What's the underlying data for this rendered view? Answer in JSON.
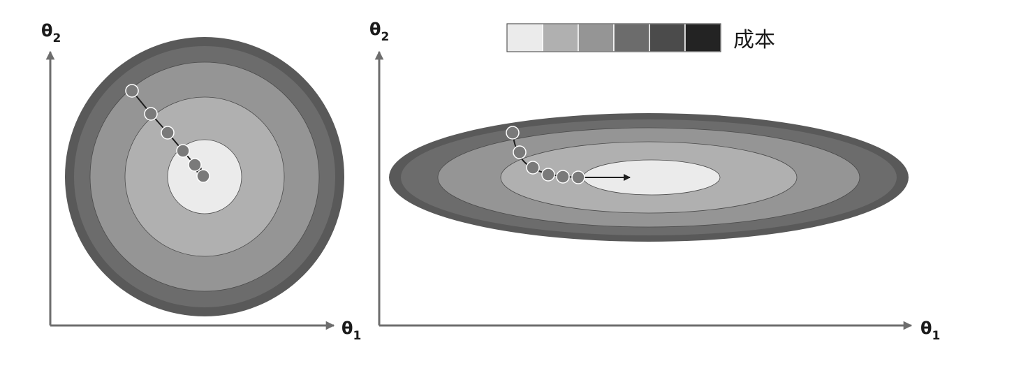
{
  "colors": {
    "axis": "#6d6d6d",
    "ring_outer_edge": "#595959",
    "ring_1": "#6c6c6c",
    "ring_2": "#959595",
    "ring_3": "#b0b0b0",
    "ring_center": "#ebebeb",
    "path": "#1e1e1e",
    "step_fill": "#7a7a7a",
    "step_stroke": "#ffffff"
  },
  "legend": {
    "label": "成本",
    "swatches": [
      "#ebebeb",
      "#b0b0b0",
      "#959595",
      "#6c6c6c",
      "#4b4b4b",
      "#232323"
    ]
  },
  "left_panel": {
    "x_axis_label": "θ",
    "x_axis_sub": "1",
    "y_axis_label": "θ",
    "y_axis_sub": "2"
  },
  "right_panel": {
    "x_axis_label": "θ",
    "x_axis_sub": "1",
    "y_axis_label": "θ",
    "y_axis_sub": "2"
  }
}
